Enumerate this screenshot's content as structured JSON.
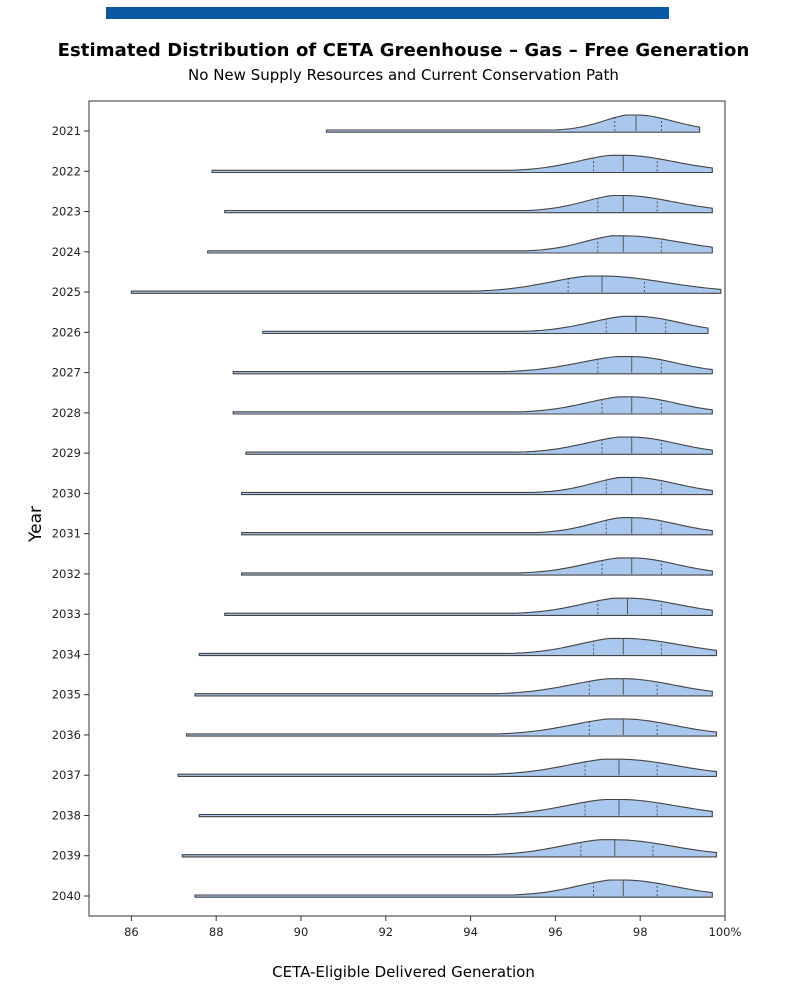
{
  "colors": {
    "header_bar": "#0a57a4",
    "violin_fill": "#aac8ee",
    "violin_edge": "#444444"
  },
  "chart_data": {
    "type": "violin",
    "orientation": "horizontal",
    "split": "half",
    "title": "Estimated Distribution of CETA Greenhouse – Gas – Free Generation",
    "subtitle": "No New Supply Resources and Current Conservation Path",
    "xlabel": "CETA-Eligible Delivered Generation",
    "ylabel": "Year",
    "xlim": [
      85,
      100
    ],
    "xticks": [
      86,
      88,
      90,
      92,
      94,
      96,
      98,
      100
    ],
    "xtick_labels": [
      "86",
      "88",
      "90",
      "92",
      "94",
      "96",
      "98",
      "100%"
    ],
    "grid": false,
    "inner": "quartile",
    "categories": [
      "2021",
      "2022",
      "2023",
      "2024",
      "2025",
      "2026",
      "2027",
      "2028",
      "2029",
      "2030",
      "2031",
      "2032",
      "2033",
      "2034",
      "2035",
      "2036",
      "2037",
      "2038",
      "2039",
      "2040"
    ],
    "series": [
      {
        "year": "2021",
        "min": 90.6,
        "q1": 97.4,
        "median": 97.9,
        "q3": 98.5,
        "max": 99.4
      },
      {
        "year": "2022",
        "min": 87.9,
        "q1": 96.9,
        "median": 97.6,
        "q3": 98.4,
        "max": 99.7
      },
      {
        "year": "2023",
        "min": 88.2,
        "q1": 97.0,
        "median": 97.6,
        "q3": 98.4,
        "max": 99.7
      },
      {
        "year": "2024",
        "min": 87.8,
        "q1": 97.0,
        "median": 97.6,
        "q3": 98.5,
        "max": 99.7
      },
      {
        "year": "2025",
        "min": 86.0,
        "q1": 96.3,
        "median": 97.1,
        "q3": 98.1,
        "max": 99.9
      },
      {
        "year": "2026",
        "min": 89.1,
        "q1": 97.2,
        "median": 97.9,
        "q3": 98.6,
        "max": 99.6
      },
      {
        "year": "2027",
        "min": 88.4,
        "q1": 97.0,
        "median": 97.8,
        "q3": 98.5,
        "max": 99.7
      },
      {
        "year": "2028",
        "min": 88.4,
        "q1": 97.1,
        "median": 97.8,
        "q3": 98.5,
        "max": 99.7
      },
      {
        "year": "2029",
        "min": 88.7,
        "q1": 97.1,
        "median": 97.8,
        "q3": 98.5,
        "max": 99.7
      },
      {
        "year": "2030",
        "min": 88.6,
        "q1": 97.2,
        "median": 97.8,
        "q3": 98.5,
        "max": 99.7
      },
      {
        "year": "2031",
        "min": 88.6,
        "q1": 97.2,
        "median": 97.8,
        "q3": 98.5,
        "max": 99.7
      },
      {
        "year": "2032",
        "min": 88.6,
        "q1": 97.1,
        "median": 97.8,
        "q3": 98.5,
        "max": 99.7
      },
      {
        "year": "2033",
        "min": 88.2,
        "q1": 97.0,
        "median": 97.7,
        "q3": 98.5,
        "max": 99.7
      },
      {
        "year": "2034",
        "min": 87.6,
        "q1": 96.9,
        "median": 97.6,
        "q3": 98.5,
        "max": 99.8
      },
      {
        "year": "2035",
        "min": 87.5,
        "q1": 96.8,
        "median": 97.6,
        "q3": 98.4,
        "max": 99.7
      },
      {
        "year": "2036",
        "min": 87.3,
        "q1": 96.8,
        "median": 97.6,
        "q3": 98.4,
        "max": 99.8
      },
      {
        "year": "2037",
        "min": 87.1,
        "q1": 96.7,
        "median": 97.5,
        "q3": 98.4,
        "max": 99.8
      },
      {
        "year": "2038",
        "min": 87.6,
        "q1": 96.7,
        "median": 97.5,
        "q3": 98.4,
        "max": 99.7
      },
      {
        "year": "2039",
        "min": 87.2,
        "q1": 96.6,
        "median": 97.4,
        "q3": 98.3,
        "max": 99.8
      },
      {
        "year": "2040",
        "min": 87.5,
        "q1": 96.9,
        "median": 97.6,
        "q3": 98.4,
        "max": 99.7
      }
    ]
  }
}
